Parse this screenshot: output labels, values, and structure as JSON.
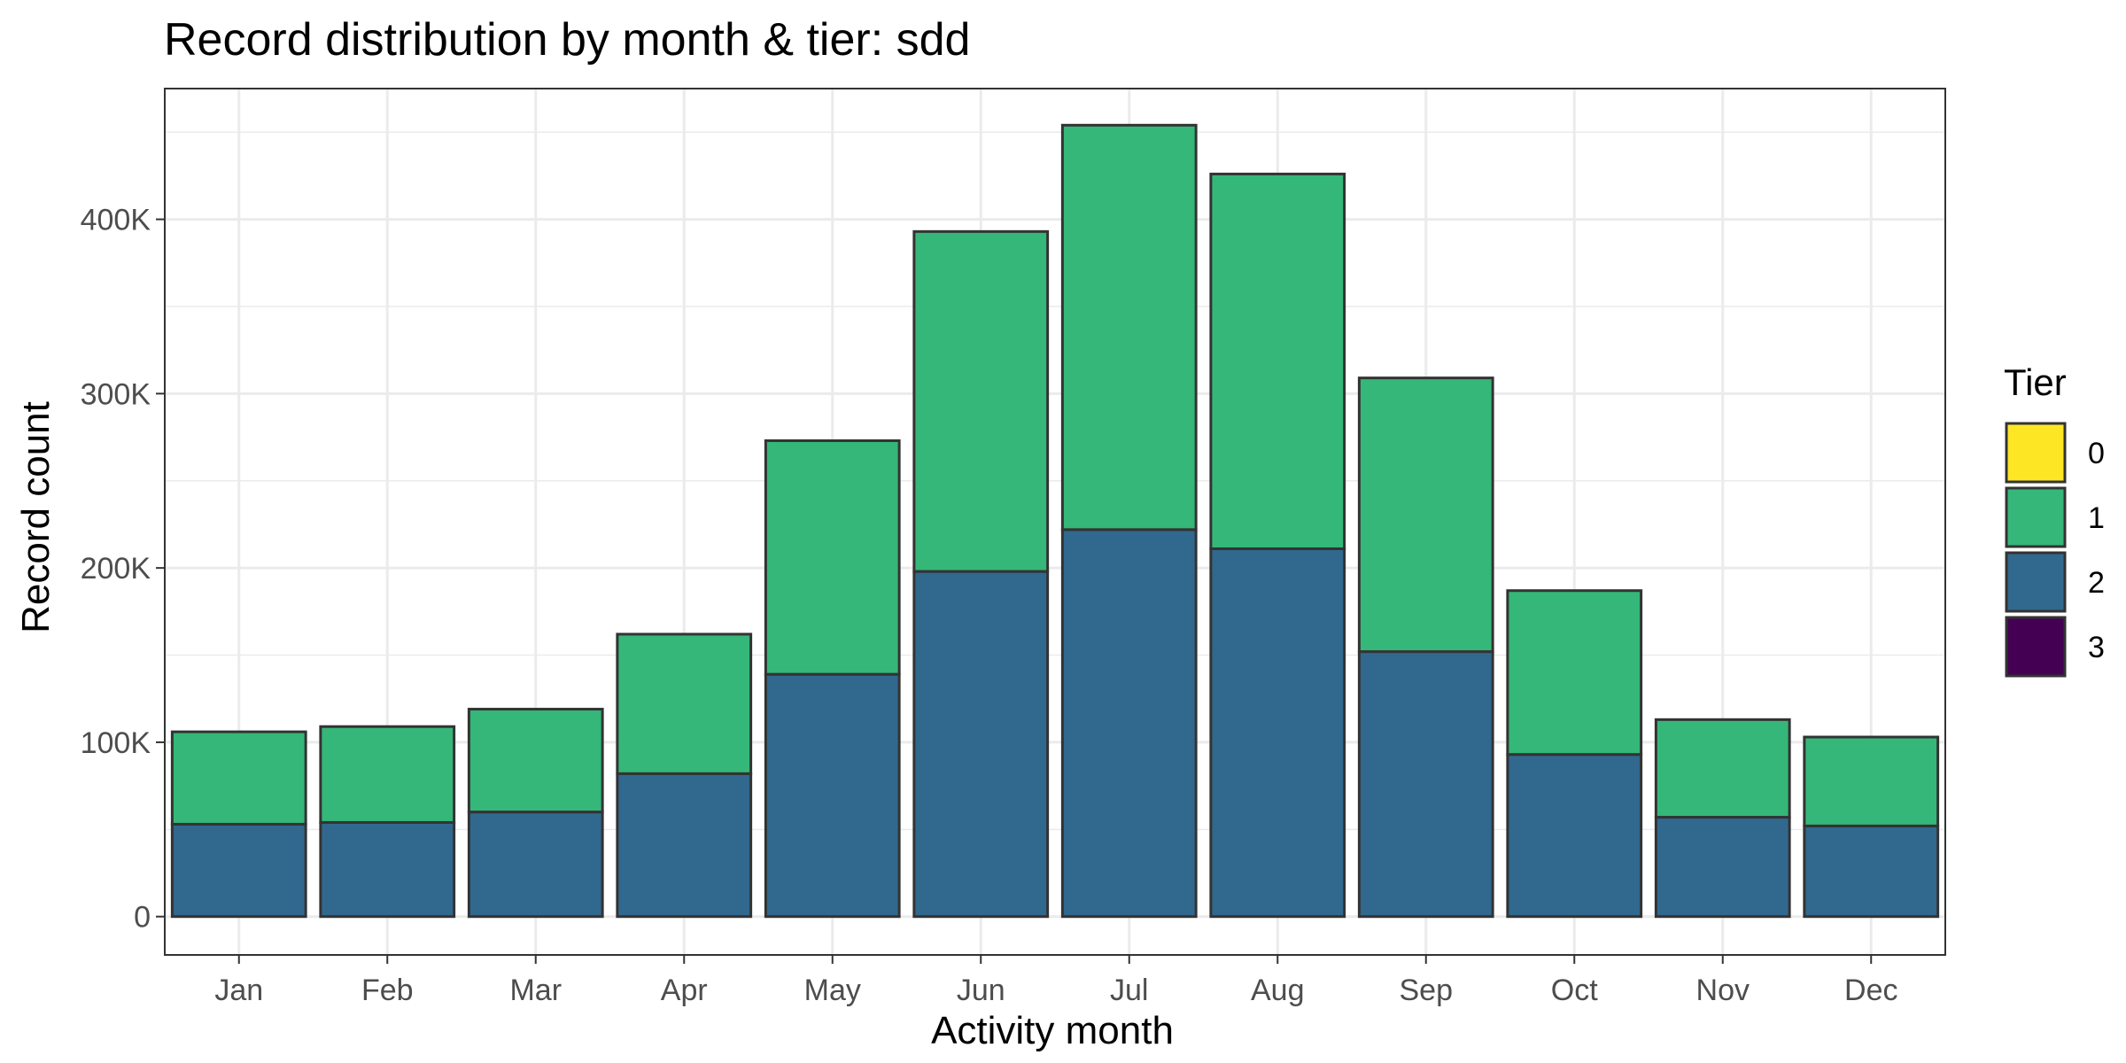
{
  "chart_data": {
    "type": "bar",
    "stacked": true,
    "title": "Record distribution by month & tier: sdd",
    "xlabel": "Activity month",
    "ylabel": "Record count",
    "categories": [
      "Jan",
      "Feb",
      "Mar",
      "Apr",
      "May",
      "Jun",
      "Jul",
      "Aug",
      "Sep",
      "Oct",
      "Nov",
      "Dec"
    ],
    "series": [
      {
        "name": "3",
        "color": "#440154",
        "values": [
          0,
          0,
          0,
          0,
          0,
          0,
          0,
          0,
          0,
          0,
          0,
          0
        ]
      },
      {
        "name": "2",
        "color": "#31688e",
        "values": [
          53000,
          54000,
          60000,
          82000,
          139000,
          198000,
          222000,
          211000,
          152000,
          93000,
          57000,
          52000
        ]
      },
      {
        "name": "1",
        "color": "#35b779",
        "values": [
          53000,
          55000,
          59000,
          80000,
          134000,
          195000,
          232000,
          215000,
          157000,
          94000,
          56000,
          51000
        ]
      },
      {
        "name": "0",
        "color": "#fde725",
        "values": [
          0,
          0,
          0,
          0,
          0,
          0,
          0,
          0,
          0,
          0,
          0,
          0
        ]
      }
    ],
    "ylim": [
      -22000,
      475000
    ],
    "yticks": [
      0,
      100000,
      200000,
      300000,
      400000
    ],
    "ytick_labels": [
      "0",
      "100K",
      "200K",
      "300K",
      "400K"
    ],
    "grid": true,
    "legend": {
      "title": "Tier",
      "placement": "right",
      "entries": [
        {
          "label": "0",
          "color": "#fde725"
        },
        {
          "label": "1",
          "color": "#35b779"
        },
        {
          "label": "2",
          "color": "#31688e"
        },
        {
          "label": "3",
          "color": "#440154"
        }
      ]
    }
  }
}
